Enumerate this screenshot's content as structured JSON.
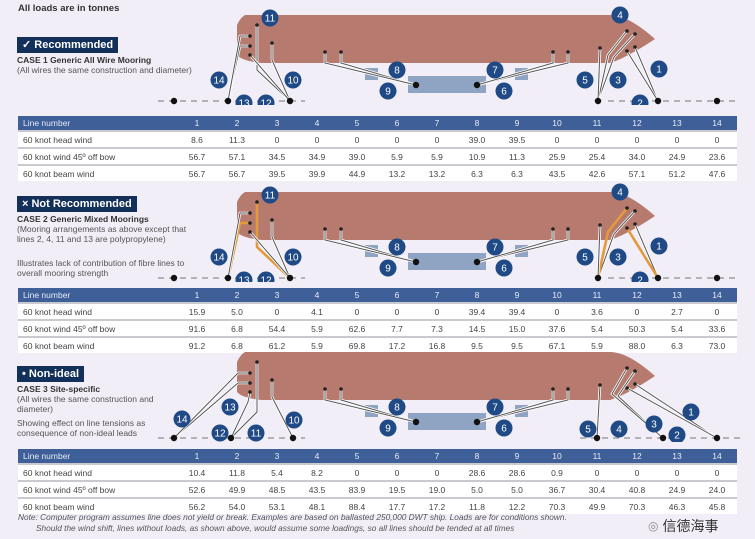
{
  "units_note": "All loads are in tonnes",
  "colors": {
    "hull": "#b67b6e",
    "badge": "#13305a",
    "table_header": "#3f5f99",
    "label_circle": "#1f4a86",
    "jetty": "#8fa3c2",
    "wire": "#555555",
    "fibre": "#e29a3c"
  },
  "line_labels": [
    "1",
    "2",
    "3",
    "4",
    "5",
    "6",
    "7",
    "8",
    "9",
    "10",
    "11",
    "12",
    "13",
    "14"
  ],
  "cases": [
    {
      "badge": "✓ Recommended",
      "title": "CASE 1 Generic All Wire Mooring",
      "subtitle": "(All wires the same construction and diameter)",
      "description": "",
      "fibre_lines": [],
      "table": {
        "header": [
          "Line number",
          "1",
          "2",
          "3",
          "4",
          "5",
          "6",
          "7",
          "8",
          "9",
          "10",
          "11",
          "12",
          "13",
          "14"
        ],
        "rows": [
          [
            "60 knot head wind",
            "8.6",
            "11.3",
            "0",
            "0",
            "0",
            "0",
            "0",
            "39.0",
            "39.5",
            "0",
            "0",
            "0",
            "0",
            "0"
          ],
          [
            "60 knot wind 45º off bow",
            "56.7",
            "57.1",
            "34.5",
            "34.9",
            "39.0",
            "5.9",
            "5.9",
            "10.9",
            "11.3",
            "25.9",
            "25.4",
            "34.0",
            "24.9",
            "23.6"
          ],
          [
            "60 knot beam wind",
            "56.7",
            "56.7",
            "39.5",
            "39.9",
            "44.9",
            "13.2",
            "13.2",
            "6.3",
            "6.3",
            "43.5",
            "42.6",
            "57.1",
            "51.2",
            "47.6"
          ]
        ]
      }
    },
    {
      "badge": "× Not Recommended",
      "title": "CASE 2 Generic Mixed Moorings",
      "subtitle": "(Mooring arrangements as above except that lines 2, 4, 11 and 13 are polypropylene)",
      "description": "Illustrates lack of contribution of fibre lines to overall mooring strength",
      "fibre_lines": [
        2,
        4,
        11,
        13
      ],
      "table": {
        "header": [
          "Line number",
          "1",
          "2",
          "3",
          "4",
          "5",
          "6",
          "7",
          "8",
          "9",
          "10",
          "11",
          "12",
          "13",
          "14"
        ],
        "rows": [
          [
            "60 knot head wind",
            "15.9",
            "5.0",
            "0",
            "4.1",
            "0",
            "0",
            "0",
            "39.4",
            "39.4",
            "0",
            "3.6",
            "0",
            "2.7",
            "0"
          ],
          [
            "60 knot wind 45º off bow",
            "91.6",
            "6.8",
            "54.4",
            "5.9",
            "62.6",
            "7.7",
            "7.3",
            "14.5",
            "15.0",
            "37.6",
            "5.4",
            "50.3",
            "5.4",
            "33.6"
          ],
          [
            "60 knot beam wind",
            "91.2",
            "6.8",
            "61.2",
            "5.9",
            "69.8",
            "17.2",
            "16.8",
            "9.5",
            "9.5",
            "67.1",
            "5.9",
            "88.0",
            "6.3",
            "73.0"
          ]
        ]
      }
    },
    {
      "badge": "• Non-ideal",
      "title": "CASE 3 Site-specific",
      "subtitle": "(All wires the same construction and diameter)",
      "description": "Showing effect on line tensions as consequence of non-ideal leads",
      "fibre_lines": [],
      "table": {
        "header": [
          "Line number",
          "1",
          "2",
          "3",
          "4",
          "5",
          "6",
          "7",
          "8",
          "9",
          "10",
          "11",
          "12",
          "13",
          "14"
        ],
        "rows": [
          [
            "60 knot head wind",
            "10.4",
            "11.8",
            "5.4",
            "8.2",
            "0",
            "0",
            "0",
            "28.6",
            "28.6",
            "0.9",
            "0",
            "0",
            "0",
            "0"
          ],
          [
            "60 knot wind 45º off bow",
            "52.6",
            "49.9",
            "48.5",
            "43.5",
            "83.9",
            "19.5",
            "19.0",
            "5.0",
            "5.0",
            "36.7",
            "30.4",
            "40.8",
            "24.9",
            "24.0"
          ],
          [
            "60 knot beam wind",
            "56.2",
            "54.0",
            "53.1",
            "48.1",
            "88.4",
            "17.7",
            "17.2",
            "11.8",
            "12.2",
            "70.3",
            "49.9",
            "70.3",
            "46.3",
            "45.8"
          ]
        ]
      }
    }
  ],
  "footnote": {
    "line1": "Note: Computer program assumes line does not yield or break. Examples are based on ballasted 250,000 DWT ship. Loads are for conditions shown.",
    "line2": "Should the wind shift, lines without loads, as shown above, would assume some loadings, so all lines should be tended at all times"
  },
  "watermark": "信德海事"
}
